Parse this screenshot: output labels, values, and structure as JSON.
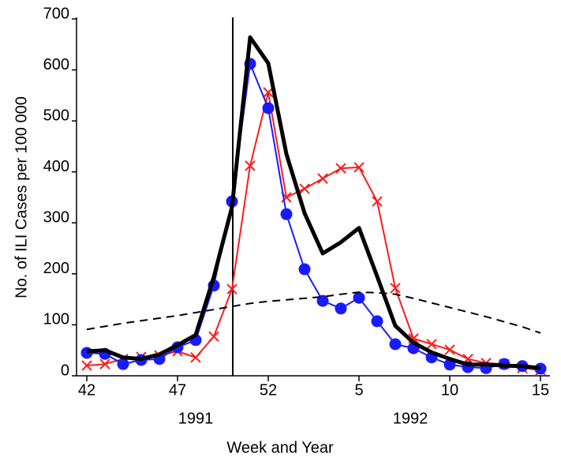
{
  "chart_data": {
    "type": "line",
    "x_label": "Week and Year",
    "y_label": "No. of ILI Cases per 100 000",
    "categories": [
      "42",
      null,
      null,
      null,
      null,
      "47",
      null,
      null,
      null,
      null,
      "52",
      null,
      null,
      null,
      null,
      "5",
      null,
      null,
      null,
      null,
      "10",
      null,
      null,
      null,
      null,
      "15"
    ],
    "year_labels": [
      "1991",
      "1992"
    ],
    "ylim": [
      0,
      700
    ],
    "yticks": [
      0,
      100,
      200,
      300,
      400,
      500,
      600,
      700
    ],
    "series": [
      {
        "color": "#ff1a1a",
        "marker": "x",
        "style": "solid",
        "width": 2,
        "values": [
          20,
          23,
          33,
          37,
          40,
          48,
          36,
          77,
          170,
          412,
          556,
          350,
          367,
          387,
          407,
          409,
          342,
          172,
          73,
          62,
          51,
          33,
          25,
          23,
          15,
          11
        ]
      },
      {
        "color": "#1a1aff",
        "marker": "circle",
        "style": "solid",
        "width": 2,
        "values": [
          45,
          43,
          23,
          31,
          33,
          56,
          70,
          177,
          342,
          612,
          525,
          317,
          209,
          147,
          132,
          153,
          107,
          62,
          54,
          36,
          22,
          17,
          15,
          23,
          19,
          14
        ]
      },
      {
        "color": "#000000",
        "marker": "none",
        "style": "solid",
        "width": 5,
        "values": [
          48,
          50,
          36,
          33,
          42,
          60,
          80,
          194,
          331,
          664,
          613,
          435,
          319,
          240,
          262,
          290,
          195,
          98,
          65,
          46,
          33,
          22,
          22,
          20,
          19,
          15
        ]
      },
      {
        "color": "#000000",
        "marker": "none",
        "style": "dashed",
        "width": 2,
        "values": [
          91,
          97,
          103,
          108,
          113,
          118,
          124,
          130,
          136,
          142,
          146,
          149,
          152,
          155,
          160,
          164,
          163,
          160,
          152,
          143,
          134,
          125,
          116,
          106,
          96,
          84
        ]
      }
    ]
  }
}
